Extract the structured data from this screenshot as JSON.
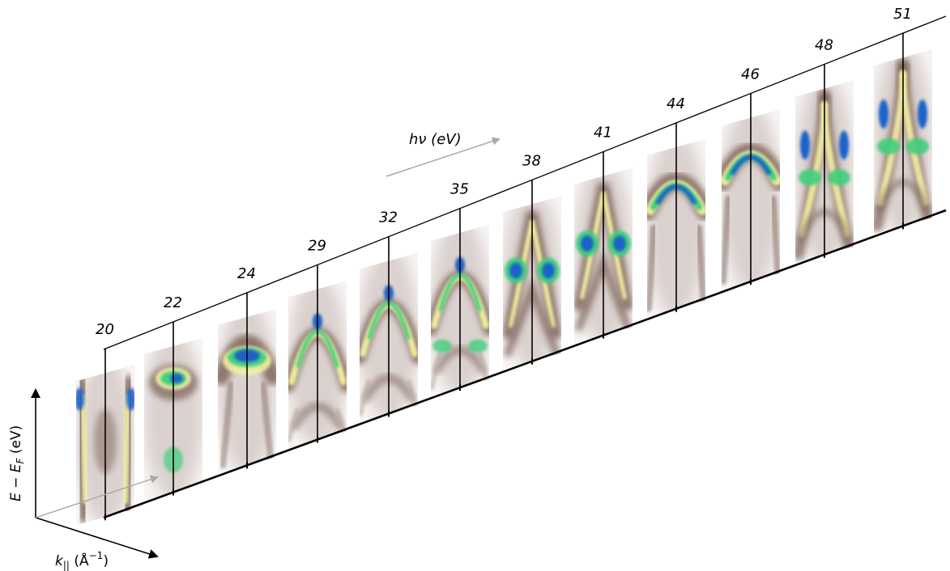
{
  "photon_energies": [
    "20",
    "22",
    "24",
    "29",
    "32",
    "35",
    "38",
    "41",
    "44",
    "46",
    "48",
    "51"
  ],
  "panel_styles": [
    "split",
    "funnel",
    "triangle",
    "dome",
    "dome",
    "dome",
    "cross",
    "cross",
    "cap",
    "cap",
    "spike",
    "spike"
  ],
  "direction_label": "hν (eV)",
  "y_axis": {
    "pre": "E − E",
    "sub": "F",
    "post": " (eV)"
  },
  "x_axis": {
    "pre": "k",
    "sub": "||",
    "post": " (Å",
    "sup": "−1",
    "end": ")"
  },
  "colors": {
    "background": "#f7f5f4",
    "haze": "#b8a7a1",
    "brown": "#7a5f55",
    "yellow": "#f3f0a3",
    "green": "#3fcf7c",
    "blue": "#1a62c9",
    "arrow_gray": "#a9a9a9",
    "line": "#000000"
  }
}
